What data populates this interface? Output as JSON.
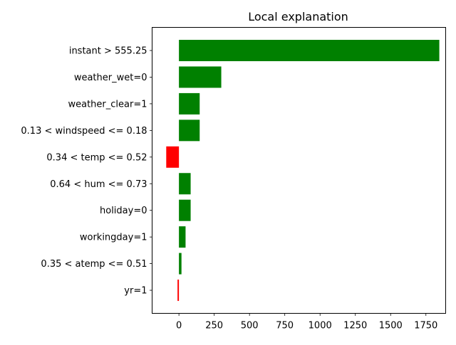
{
  "chart_data": {
    "type": "bar",
    "orientation": "horizontal",
    "title": "Local explanation",
    "xlabel": "",
    "ylabel": "",
    "xlim": [
      -190,
      1890
    ],
    "xticks": [
      0,
      250,
      500,
      750,
      1000,
      1250,
      1500,
      1750
    ],
    "xtick_labels": [
      "0",
      "250",
      "500",
      "750",
      "1000",
      "1250",
      "1500",
      "1750"
    ],
    "grid": false,
    "colors": {
      "positive": "#008000",
      "negative": "#ff0000"
    },
    "categories": [
      "instant > 555.25",
      "weather_wet=0",
      "weather_clear=1",
      "0.13 < windspeed <= 0.18",
      "0.34 < temp <= 0.52",
      "0.64 < hum <= 0.73",
      "holiday=0",
      "workingday=1",
      "0.35 < atemp <= 0.51",
      "yr=1"
    ],
    "values": [
      1845,
      300,
      147,
      147,
      -90,
      83,
      83,
      47,
      18,
      -10
    ]
  }
}
